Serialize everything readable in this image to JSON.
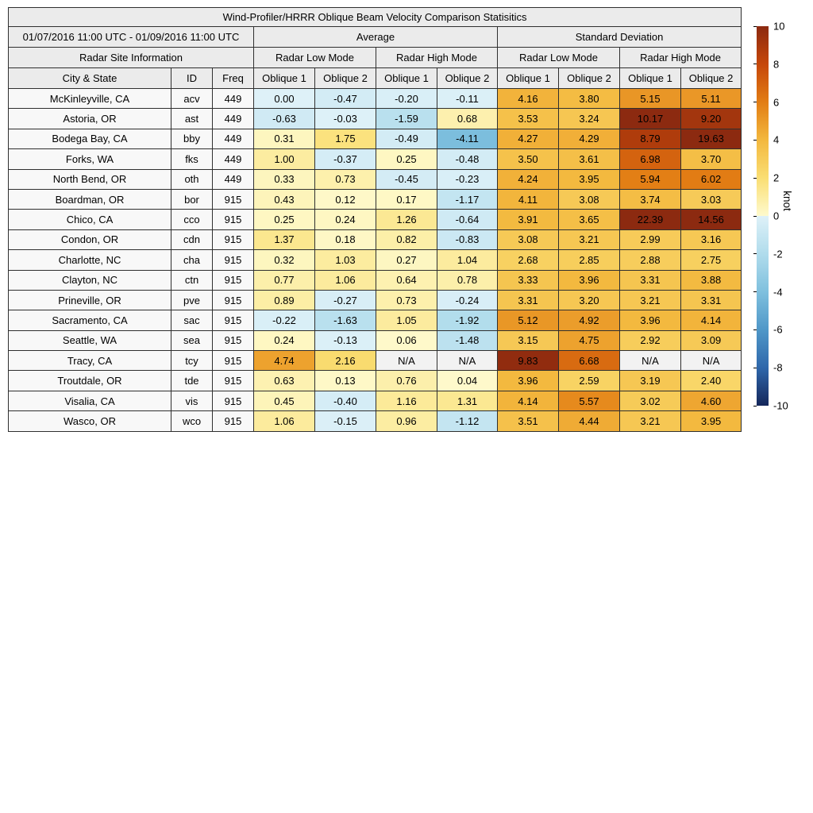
{
  "figure_title": "Wind-Profiler/HRRR Oblique Beam Velocity Comparison Statisitics",
  "header": {
    "date_range": "01/07/2016 11:00 UTC - 01/09/2016 11:00 UTC",
    "average_label": "Average",
    "std_label": "Standard Deviation",
    "site_info_label": "Radar Site Information",
    "avg_low_label": "Radar Low Mode",
    "avg_high_label": "Radar High Mode",
    "std_low_label": "Radar Low Mode",
    "std_high_label": "Radar High Mode",
    "columns": [
      "City & State",
      "ID",
      "Freq",
      "Oblique 1",
      "Oblique 2",
      "Oblique 1",
      "Oblique 2",
      "Oblique 1",
      "Oblique 2",
      "Oblique 1",
      "Oblique 2"
    ]
  },
  "chart_data": {
    "type": "heatmap",
    "title": "Wind-Profiler/HRRR Oblique Beam Velocity Comparison Statisitics",
    "unit": "knot",
    "value_range": [
      -10,
      10
    ],
    "value_columns": [
      "Average Radar Low Mode Oblique 1",
      "Average Radar Low Mode Oblique 2",
      "Average Radar High Mode Oblique 1",
      "Average Radar High Mode Oblique 2",
      "Standard Deviation Radar Low Mode Oblique 1",
      "Standard Deviation Radar Low Mode Oblique 2",
      "Standard Deviation Radar High Mode Oblique 1",
      "Standard Deviation Radar High Mode Oblique 2"
    ],
    "rows": [
      {
        "city": "McKinleyville, CA",
        "id": "acv",
        "freq": "449",
        "values": [
          "0.00",
          "-0.47",
          "-0.20",
          "-0.11",
          "4.16",
          "3.80",
          "5.15",
          "5.11"
        ]
      },
      {
        "city": "Astoria, OR",
        "id": "ast",
        "freq": "449",
        "values": [
          "-0.63",
          "-0.03",
          "-1.59",
          "0.68",
          "3.53",
          "3.24",
          "10.17",
          "9.20"
        ]
      },
      {
        "city": "Bodega Bay, CA",
        "id": "bby",
        "freq": "449",
        "values": [
          "0.31",
          "1.75",
          "-0.49",
          "-4.11",
          "4.27",
          "4.29",
          "8.79",
          "19.63"
        ]
      },
      {
        "city": "Forks, WA",
        "id": "fks",
        "freq": "449",
        "values": [
          "1.00",
          "-0.37",
          "0.25",
          "-0.48",
          "3.50",
          "3.61",
          "6.98",
          "3.70"
        ]
      },
      {
        "city": "North Bend, OR",
        "id": "oth",
        "freq": "449",
        "values": [
          "0.33",
          "0.73",
          "-0.45",
          "-0.23",
          "4.24",
          "3.95",
          "5.94",
          "6.02"
        ]
      },
      {
        "city": "Boardman, OR",
        "id": "bor",
        "freq": "915",
        "values": [
          "0.43",
          "0.12",
          "0.17",
          "-1.17",
          "4.11",
          "3.08",
          "3.74",
          "3.03"
        ]
      },
      {
        "city": "Chico, CA",
        "id": "cco",
        "freq": "915",
        "values": [
          "0.25",
          "0.24",
          "1.26",
          "-0.64",
          "3.91",
          "3.65",
          "22.39",
          "14.56"
        ]
      },
      {
        "city": "Condon, OR",
        "id": "cdn",
        "freq": "915",
        "values": [
          "1.37",
          "0.18",
          "0.82",
          "-0.83",
          "3.08",
          "3.21",
          "2.99",
          "3.16"
        ]
      },
      {
        "city": "Charlotte, NC",
        "id": "cha",
        "freq": "915",
        "values": [
          "0.32",
          "1.03",
          "0.27",
          "1.04",
          "2.68",
          "2.85",
          "2.88",
          "2.75"
        ]
      },
      {
        "city": "Clayton, NC",
        "id": "ctn",
        "freq": "915",
        "values": [
          "0.77",
          "1.06",
          "0.64",
          "0.78",
          "3.33",
          "3.96",
          "3.31",
          "3.88"
        ]
      },
      {
        "city": "Prineville, OR",
        "id": "pve",
        "freq": "915",
        "values": [
          "0.89",
          "-0.27",
          "0.73",
          "-0.24",
          "3.31",
          "3.20",
          "3.21",
          "3.31"
        ]
      },
      {
        "city": "Sacramento, CA",
        "id": "sac",
        "freq": "915",
        "values": [
          "-0.22",
          "-1.63",
          "1.05",
          "-1.92",
          "5.12",
          "4.92",
          "3.96",
          "4.14"
        ]
      },
      {
        "city": "Seattle, WA",
        "id": "sea",
        "freq": "915",
        "values": [
          "0.24",
          "-0.13",
          "0.06",
          "-1.48",
          "3.15",
          "4.75",
          "2.92",
          "3.09"
        ]
      },
      {
        "city": "Tracy, CA",
        "id": "tcy",
        "freq": "915",
        "values": [
          "4.74",
          "2.16",
          "N/A",
          "N/A",
          "9.83",
          "6.68",
          "N/A",
          "N/A"
        ]
      },
      {
        "city": "Troutdale, OR",
        "id": "tde",
        "freq": "915",
        "values": [
          "0.63",
          "0.13",
          "0.76",
          "0.04",
          "3.96",
          "2.59",
          "3.19",
          "2.40"
        ]
      },
      {
        "city": "Visalia, CA",
        "id": "vis",
        "freq": "915",
        "values": [
          "0.45",
          "-0.40",
          "1.16",
          "1.31",
          "4.14",
          "5.57",
          "3.02",
          "4.60"
        ]
      },
      {
        "city": "Wasco, OR",
        "id": "wco",
        "freq": "915",
        "values": [
          "1.06",
          "-0.15",
          "0.96",
          "-1.12",
          "3.51",
          "4.44",
          "3.21",
          "3.95"
        ]
      }
    ]
  },
  "colorbar": {
    "label": "knot",
    "max": 10,
    "min": -10,
    "ticks": [
      "10",
      "8",
      "6",
      "4",
      "2",
      "0",
      "-2",
      "-4",
      "-6",
      "-8",
      "-10"
    ],
    "positive_stops": [
      [
        0,
        "#fefacd"
      ],
      [
        2,
        "#fade73"
      ],
      [
        4,
        "#f3b83e"
      ],
      [
        6,
        "#e27d14"
      ],
      [
        8,
        "#c6470a"
      ],
      [
        10,
        "#8c2a10"
      ]
    ],
    "negative_stops": [
      [
        0,
        "#def1f8"
      ],
      [
        2,
        "#b0dcec"
      ],
      [
        4,
        "#7fc0de"
      ],
      [
        6,
        "#4f97c8"
      ],
      [
        8,
        "#2f67ab"
      ],
      [
        10,
        "#14265a"
      ]
    ],
    "na_color": "#f2f2f2"
  }
}
